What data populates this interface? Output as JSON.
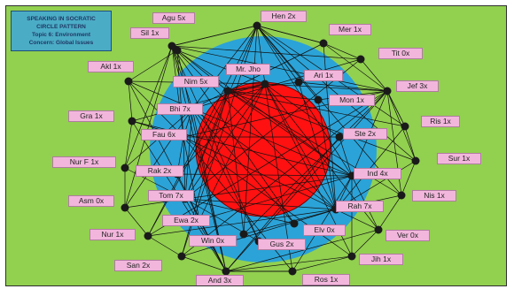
{
  "title": {
    "line1": "SPEAKING IN SOCRATIC",
    "line2": "CIRCLE PATTERN",
    "line3": "Topic 6: Environment",
    "line4": "Concern: Global Issues"
  },
  "center": "Mr. Jho",
  "participants": [
    "Agu 5x",
    "Hen 2x",
    "Sil 1x",
    "Mer 1x",
    "Tit 0x",
    "Akl 1x",
    "Ari 1x",
    "Nim 5x",
    "Jef 3x",
    "Mon 1x",
    "Bhi 7x",
    "Gra 1x",
    "Ris 1x",
    "Fau 6x",
    "Ste 2x",
    "Sur 1x",
    "Nur F 1x",
    "Rak 2x",
    "Ind 4x",
    "Asm 0x",
    "Tom 7x",
    "Nis 1x",
    "Rah 7x",
    "Ewa 2x",
    "Nur 1x",
    "Elv 0x",
    "Ver 0x",
    "Win 0x",
    "Gus 2x",
    "Jih 1x",
    "San 2x",
    "And 3x",
    "Ros 1x"
  ],
  "colors": {
    "background": "#92d050",
    "outer_circle": "#2ba3d8",
    "inner_circle": "#ff1111",
    "label_fill": "#f2b6dc",
    "title_fill": "#4bacc6",
    "node": "#1a1a1a"
  }
}
